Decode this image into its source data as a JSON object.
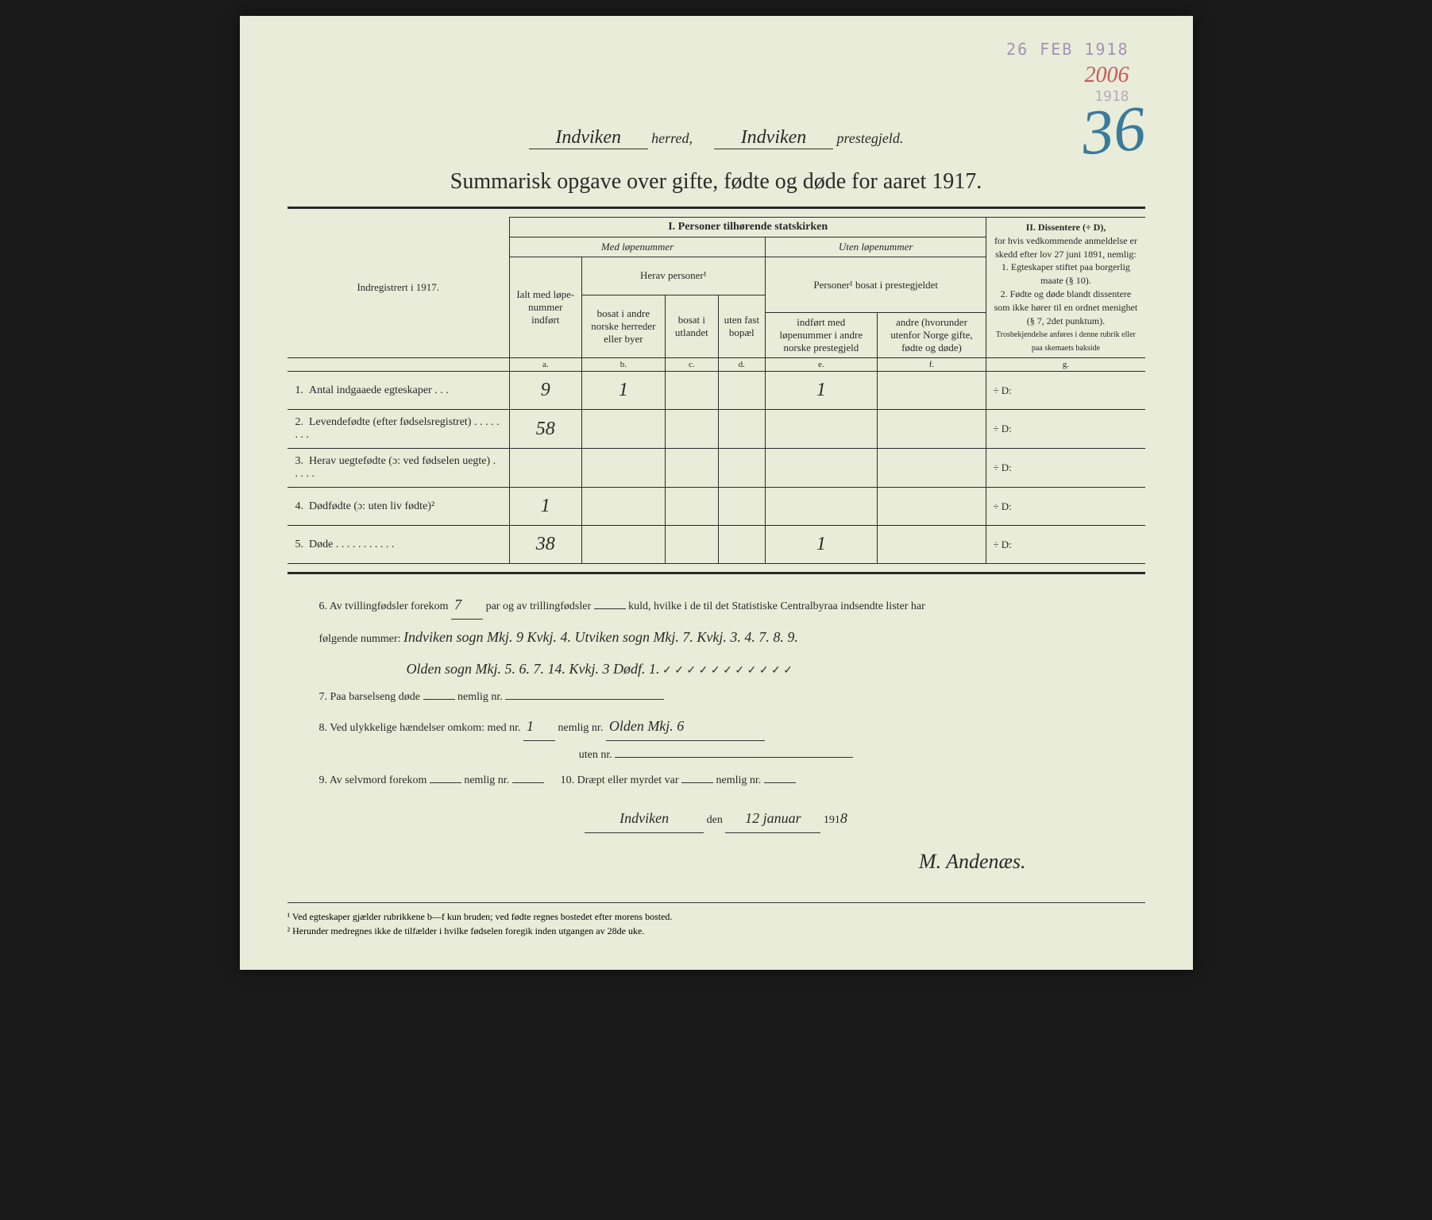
{
  "stamps": {
    "date": "26 FEB 1918",
    "number": "2006",
    "year": "1918",
    "big_number": "36"
  },
  "header": {
    "herred": "Indviken",
    "herred_label": "herred,",
    "prestegjeld": "Indviken",
    "prestegjeld_label": "prestegjeld."
  },
  "title": "Summarisk opgave over gifte, fødte og døde for aaret 1917.",
  "table": {
    "left_header": "Indregistrert i 1917.",
    "section1": "I.  Personer tilhørende statskirken",
    "section2_title": "II.  Dissentere (÷ D),",
    "section2_text": "for hvis vedkommende anmeldelse er skedd efter lov 27 juni 1891, nemlig:",
    "section2_item1": "1. Egteskaper stiftet paa borgerlig maate (§ 10).",
    "section2_item2": "2. Fødte og døde blandt dissentere som ikke hører til en ordnet menighet (§ 7, 2det punktum).",
    "section2_note": "Trosbekjendelse anføres i denne rubrik eller paa skemaets bakside",
    "med_lope": "Med løpenummer",
    "uten_lope": "Uten løpenummer",
    "herav": "Herav personer¹",
    "personer_bosat": "Personer¹\nbosat i prestegjeldet",
    "col_a": "Ialt med løpe-nummer indført",
    "col_b": "bosat i andre norske herreder eller byer",
    "col_c": "bosat i utlandet",
    "col_d": "uten fast bopæl",
    "col_e": "indført med løpenummer i andre norske prestegjeld",
    "col_f": "andre (hvorunder utenfor Norge gifte, fødte og døde)",
    "letters": {
      "a": "a.",
      "b": "b.",
      "c": "c.",
      "d": "d.",
      "e": "e.",
      "f": "f.",
      "g": "g."
    },
    "rows": [
      {
        "num": "1.",
        "label": "Antal indgaaede egteskaper  .  .  .",
        "a": "9",
        "b": "1",
        "c": "",
        "d": "",
        "e": "1",
        "f": "",
        "g": "÷ D:"
      },
      {
        "num": "2.",
        "label": "Levendefødte (efter fødselsregistret)  .  .  .  .  .  .  .  .",
        "a": "58",
        "b": "",
        "c": "",
        "d": "",
        "e": "",
        "f": "",
        "g": "÷ D:"
      },
      {
        "num": "3.",
        "label": "Herav uegtefødte (ɔ: ved fødselen uegte)  .  .  .  .  .",
        "a": "",
        "b": "",
        "c": "",
        "d": "",
        "e": "",
        "f": "",
        "g": "÷ D:"
      },
      {
        "num": "4.",
        "label": "Dødfødte (ɔ: uten liv fødte)²",
        "a": "1",
        "b": "",
        "c": "",
        "d": "",
        "e": "",
        "f": "",
        "g": "÷ D:"
      },
      {
        "num": "5.",
        "label": "Døde  .  .  .  .  .  .  .  .  .  .  .",
        "a": "38",
        "b": "",
        "c": "",
        "d": "",
        "e": "1",
        "f": "",
        "g": "÷ D:"
      }
    ]
  },
  "bottom": {
    "line6a": "6.   Av tvillingfødsler forekom",
    "line6a_val": "7",
    "line6b": "par og av trillingfødsler",
    "line6b_val": "",
    "line6c": "kuld, hvilke i de til det Statistiske Centralbyraa indsendte lister har",
    "line6d": "følgende nummer:",
    "line6d_val": "Indviken sogn Mkj. 9 Kvkj. 4. Utviken sogn Mkj. 7. Kvkj. 3. 4. 7. 8. 9.",
    "line6e_val": "Olden sogn Mkj. 5. 6. 7. 14. Kvkj. 3  Dødf. 1.",
    "checks": "✓  ✓  ✓  ✓        ✓        ✓        ✓  ✓   ✓ ✓  ✓",
    "line7": "7.   Paa barselseng døde",
    "line7_val": "",
    "line7b": "nemlig nr.",
    "line8": "8.   Ved ulykkelige hændelser omkom:  med nr.",
    "line8_val": "1",
    "line8b": "nemlig nr.",
    "line8b_val": "Olden Mkj. 6",
    "line8c": "uten nr.",
    "line9": "9.   Av selvmord forekom",
    "line9_val": "",
    "line9b": "nemlig nr.",
    "line10": "10.   Dræpt eller myrdet var",
    "line10_val": "",
    "line10b": "nemlig nr.",
    "place": "Indviken",
    "den": "den",
    "date": "12 januar",
    "year_prefix": "191",
    "year_suffix": "8",
    "signature": "M. Andenæs."
  },
  "footnotes": {
    "f1": "¹ Ved egteskaper gjælder rubrikkene b—f kun bruden; ved fødte regnes bostedet efter morens bosted.",
    "f2": "² Herunder medregnes ikke de tilfælder i hvilke fødselen foregik inden utgangen av 28de uke."
  },
  "colors": {
    "paper": "#e8ecd8",
    "ink": "#2a2a2a",
    "stamp_purple": "#8a6ca8",
    "stamp_red": "#c85a5a",
    "pencil_blue": "#3a7a9a"
  }
}
